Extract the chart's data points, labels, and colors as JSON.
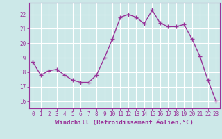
{
  "x": [
    0,
    1,
    2,
    3,
    4,
    5,
    6,
    7,
    8,
    9,
    10,
    11,
    12,
    13,
    14,
    15,
    16,
    17,
    18,
    19,
    20,
    21,
    22,
    23
  ],
  "y": [
    18.7,
    17.8,
    18.1,
    18.2,
    17.8,
    17.45,
    17.3,
    17.3,
    17.8,
    19.0,
    20.3,
    21.8,
    22.0,
    21.8,
    21.35,
    22.3,
    21.4,
    21.15,
    21.15,
    21.3,
    20.3,
    19.1,
    17.45,
    16.05
  ],
  "line_color": "#993399",
  "marker": "+",
  "marker_size": 4,
  "bg_color": "#cce8e8",
  "grid_color": "#ffffff",
  "xlabel": "Windchill (Refroidissement éolien,°C)",
  "xlabel_color": "#993399",
  "tick_color": "#993399",
  "label_color": "#993399",
  "ylim": [
    15.5,
    22.8
  ],
  "yticks": [
    16,
    17,
    18,
    19,
    20,
    21,
    22
  ],
  "xticks": [
    0,
    1,
    2,
    3,
    4,
    5,
    6,
    7,
    8,
    9,
    10,
    11,
    12,
    13,
    14,
    15,
    16,
    17,
    18,
    19,
    20,
    21,
    22,
    23
  ],
  "line_width": 1.0,
  "marker_color": "#993399",
  "tick_fontsize": 5.5,
  "xlabel_fontsize": 6.5
}
